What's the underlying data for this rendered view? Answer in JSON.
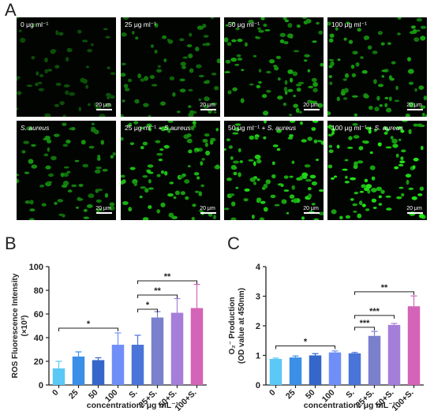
{
  "figure": {
    "panel_a": "A",
    "panel_b": "B",
    "panel_c": "C",
    "scale_bar": "20 μm",
    "images": [
      {
        "label": "0 μg ml⁻¹",
        "italic": "",
        "brightness": 0.12,
        "density": 55
      },
      {
        "label": "25 μg ml⁻¹",
        "italic": "",
        "brightness": 0.35,
        "density": 70
      },
      {
        "label": "50 μg ml⁻¹",
        "italic": "",
        "brightness": 0.55,
        "density": 85
      },
      {
        "label": "100 μg ml⁻¹",
        "italic": "",
        "brightness": 0.55,
        "density": 80
      },
      {
        "label": "",
        "italic": "S. aureus",
        "brightness": 0.45,
        "density": 75
      },
      {
        "label": "25 μg ml⁻¹ + ",
        "italic": "S.aureus",
        "brightness": 0.7,
        "density": 90
      },
      {
        "label": "50 μg ml⁻¹ + ",
        "italic": "S. aureus",
        "brightness": 0.8,
        "density": 95
      },
      {
        "label": "100 μg ml⁻¹ + ",
        "italic": "S. aureus",
        "brightness": 0.9,
        "density": 100
      }
    ]
  },
  "chart_data": [
    {
      "type": "bar",
      "panel": "B",
      "categories": [
        "0",
        "25",
        "50",
        "100",
        "S.",
        "25+S.",
        "50+S.",
        "100+S."
      ],
      "values": [
        14,
        24,
        21,
        34,
        34,
        57,
        61,
        65
      ],
      "errors": [
        6,
        4,
        2,
        10,
        8,
        5,
        12,
        20
      ],
      "colors": [
        "#5bc8f5",
        "#3b8fe6",
        "#3566c9",
        "#6f8ef7",
        "#4a74d8",
        "#7a80cc",
        "#a57ed9",
        "#d464b8"
      ],
      "ylabel": "ROS Fluorescence Intensity",
      "ylabel2": "(×10³)",
      "xlabel": "concentration: μg mL⁻¹",
      "ylim": [
        0,
        100
      ],
      "yticks": [
        "0",
        "20",
        "40",
        "60",
        "80",
        "100"
      ],
      "significance": [
        {
          "from": 0,
          "to": 3,
          "label": "*",
          "y": 48
        },
        {
          "from": 4,
          "to": 5,
          "label": "*",
          "y": 64
        },
        {
          "from": 4,
          "to": 6,
          "label": "**",
          "y": 76
        },
        {
          "from": 4,
          "to": 7,
          "label": "**",
          "y": 88
        }
      ]
    },
    {
      "type": "bar",
      "panel": "C",
      "categories": [
        "0",
        "25",
        "50",
        "100",
        "S.",
        "25+S.",
        "50+S.",
        "100+S."
      ],
      "values": [
        0.88,
        0.93,
        1.0,
        1.1,
        1.07,
        1.66,
        2.03,
        2.66
      ],
      "errors": [
        0.03,
        0.05,
        0.06,
        0.05,
        0.03,
        0.15,
        0.05,
        0.35
      ],
      "colors": [
        "#5bc8f5",
        "#3b8fe6",
        "#3566c9",
        "#6f8ef7",
        "#4a74d8",
        "#7a80cc",
        "#a57ed9",
        "#d464b8"
      ],
      "ylabel": "O₂⁻ Production",
      "ylabel2": "(OD value at 450nm)",
      "xlabel": "concentration: μg mL⁻¹",
      "ylim": [
        0,
        4
      ],
      "yticks": [
        "0",
        "1",
        "2",
        "3",
        "4"
      ],
      "significance": [
        {
          "from": 0,
          "to": 3,
          "label": "*",
          "y": 1.32
        },
        {
          "from": 4,
          "to": 5,
          "label": "***",
          "y": 1.95
        },
        {
          "from": 4,
          "to": 6,
          "label": "***",
          "y": 2.35
        },
        {
          "from": 4,
          "to": 7,
          "label": "**",
          "y": 3.15
        }
      ]
    }
  ]
}
